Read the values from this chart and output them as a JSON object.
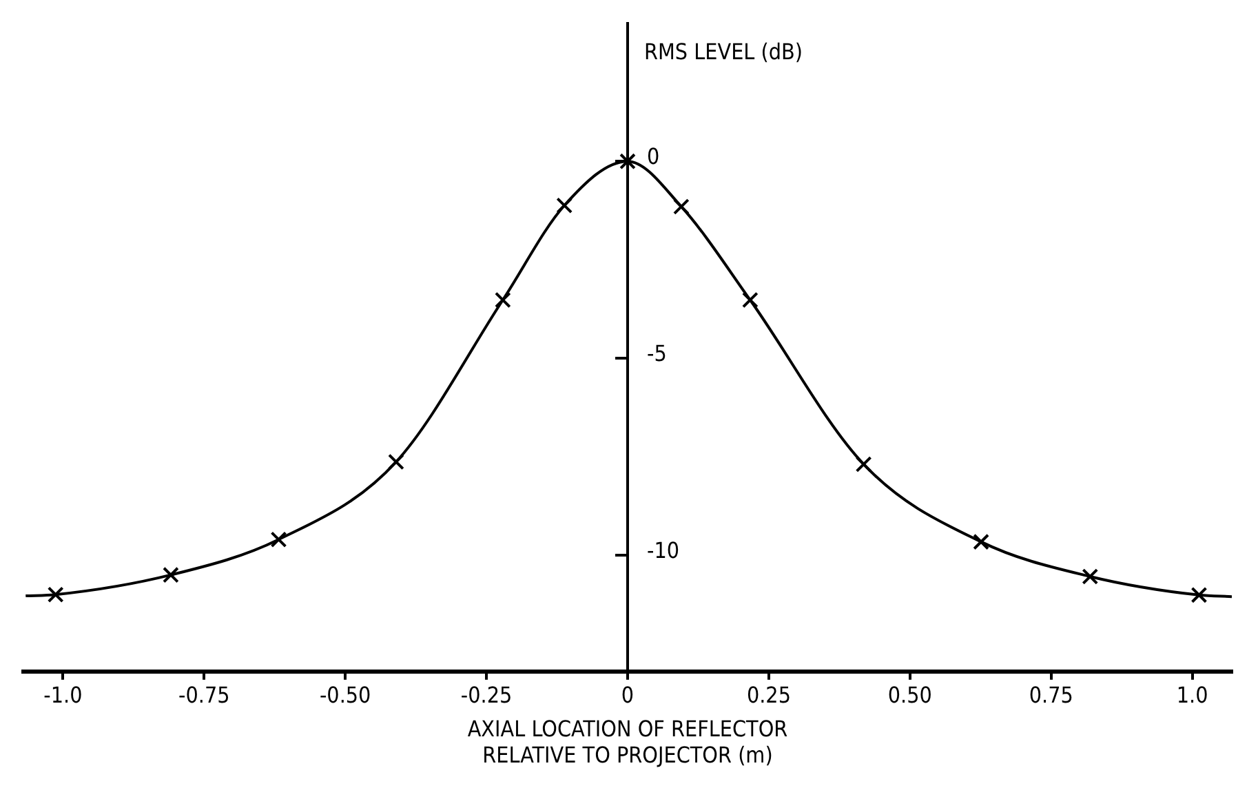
{
  "chart_data": {
    "type": "line",
    "xlabel": "AXIAL LOCATION OF REFLECTOR\nRELATIVE TO PROJECTOR (m)",
    "ylabel": "RMS LEVEL (dB)",
    "xlim": [
      -1.07,
      1.07
    ],
    "ylim": [
      -12.95,
      3.5
    ],
    "xticks": [
      {
        "value": -1,
        "label": "-1.0"
      },
      -0.75,
      {
        "value": -0.5,
        "label": "-0.50"
      },
      -0.25,
      0,
      0.25,
      {
        "value": 0.5,
        "label": "0.50"
      },
      0.75,
      {
        "value": 1,
        "label": "1.0"
      }
    ],
    "yticks": [
      0,
      -5,
      -10
    ],
    "grid": false,
    "legend": false,
    "series": [
      {
        "color": "#000000",
        "marker": "none",
        "x": [
          -1.066,
          -1.013,
          -0.809,
          -0.618,
          -0.41,
          -0.221,
          -0.112,
          0,
          0.095,
          0.217,
          0.418,
          0.626,
          0.819,
          1.012,
          1.07
        ],
        "values": [
          -11.03,
          -11.0,
          -10.5,
          -9.6,
          -7.63,
          -3.52,
          -1.12,
          0,
          -1.15,
          -3.52,
          -7.69,
          -9.66,
          -10.54,
          -11.01,
          -11.05
        ]
      },
      {
        "type": "scatter",
        "color": "#000000",
        "marker": "cross",
        "x": [
          -1.013,
          -0.809,
          -0.618,
          -0.41,
          -0.221,
          -0.112,
          0,
          0.095,
          0.217,
          0.418,
          0.626,
          0.819,
          1.012
        ],
        "values": [
          -11.0,
          -10.5,
          -9.6,
          -7.63,
          -3.52,
          -1.12,
          0,
          -1.15,
          -3.52,
          -7.69,
          -9.66,
          -10.54,
          -11.01
        ]
      }
    ]
  }
}
